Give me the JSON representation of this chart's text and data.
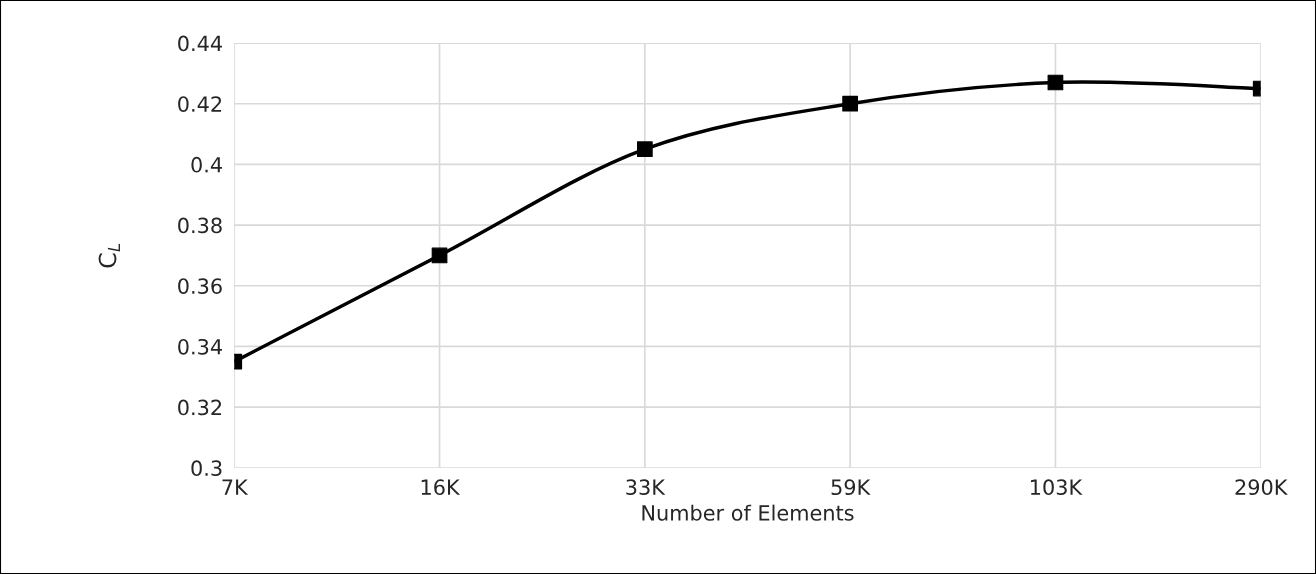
{
  "chart_data": {
    "type": "line",
    "xlabel": "Number of Elements",
    "ylabel": "C$_{L}$",
    "categories": [
      "7K",
      "16K",
      "33K",
      "59K",
      "103K",
      "290K"
    ],
    "series": [
      {
        "color": "#000000",
        "values": [
          0.335,
          0.37,
          0.405,
          0.42,
          0.427,
          0.425
        ]
      }
    ],
    "ylim": [
      0.3,
      0.44
    ],
    "yticks": [
      0.3,
      0.32,
      0.34,
      0.36,
      0.38,
      0.4,
      0.42,
      0.44
    ],
    "grid": true,
    "marker": "square",
    "line_style": "solid"
  }
}
